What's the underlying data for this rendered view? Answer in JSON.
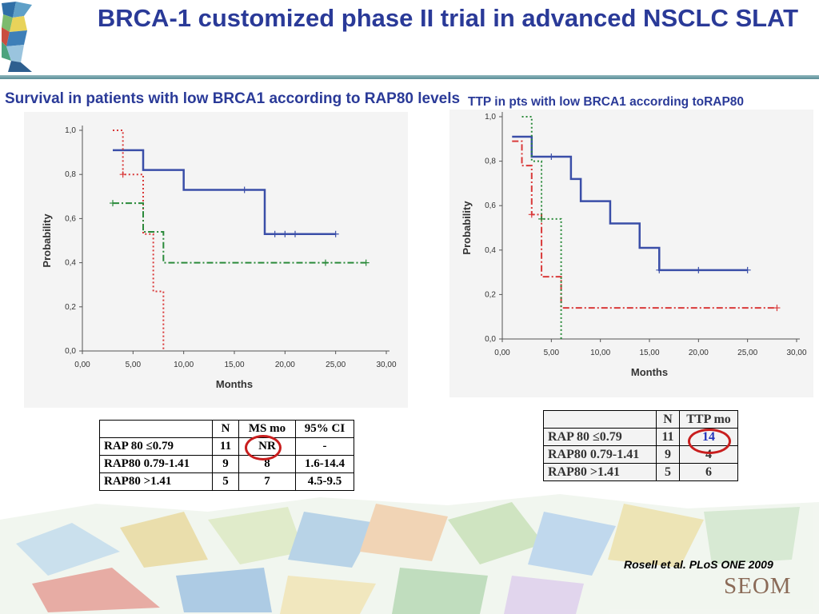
{
  "slide_title": "BRCA-1 customized phase II trial in advanced NSCLC SLAT",
  "citation": "Rosell et al. PLoS ONE 2009",
  "seom_logo": "SEOM",
  "left_heading": "Survival in patients with low BRCA1 according to RAP80 levels",
  "right_heading": "TTP in pts with low BRCA1 according toRAP80",
  "chart_data": [
    {
      "type": "line",
      "step": true,
      "title": "Survival in patients with low BRCA1 according to RAP80 levels",
      "xlabel": "Months",
      "ylabel": "Probability",
      "xlim": [
        0,
        30
      ],
      "ylim": [
        0,
        1
      ],
      "xticks": [
        "0,00",
        "5,00",
        "10,00",
        "15,00",
        "20,00",
        "25,00",
        "30,00"
      ],
      "yticks": [
        "0,0",
        "0,2",
        "0,4",
        "0,6",
        "0,8",
        "1,0"
      ],
      "series": [
        {
          "color": "#3a4ea8",
          "style": "solid",
          "x": [
            3,
            6,
            10,
            18,
            25
          ],
          "y": [
            0.91,
            0.82,
            0.73,
            0.53,
            0.53
          ],
          "censor_x": [
            16,
            19,
            20,
            21,
            25
          ]
        },
        {
          "color": "#d93a3a",
          "style": "dotted",
          "x": [
            3,
            4,
            6,
            7,
            8
          ],
          "y": [
            1.0,
            0.8,
            0.53,
            0.27,
            0.0
          ],
          "censor_x": [
            4
          ]
        },
        {
          "color": "#2a8a3a",
          "style": "dashdot",
          "x": [
            3,
            6,
            8,
            28
          ],
          "y": [
            0.67,
            0.54,
            0.4,
            0.4
          ],
          "censor_x": [
            3,
            24,
            28
          ]
        }
      ]
    },
    {
      "type": "line",
      "step": true,
      "title": "TTP in pts with low BRCA1 according toRAP80",
      "xlabel": "Months",
      "ylabel": "Probability",
      "xlim": [
        0,
        30
      ],
      "ylim": [
        0,
        1
      ],
      "xticks": [
        "0,00",
        "5,00",
        "10,00",
        "15,00",
        "20,00",
        "25,00",
        "30,00"
      ],
      "yticks": [
        "0,0",
        "0,2",
        "0,4",
        "0,6",
        "0,8",
        "1,0"
      ],
      "series": [
        {
          "color": "#3a4ea8",
          "style": "solid",
          "x": [
            1,
            3,
            7,
            8,
            11,
            14,
            16,
            25
          ],
          "y": [
            0.91,
            0.82,
            0.72,
            0.62,
            0.52,
            0.41,
            0.31,
            0.31
          ],
          "censor_x": [
            5,
            16,
            20,
            25
          ]
        },
        {
          "color": "#d93a3a",
          "style": "dashdot",
          "x": [
            1,
            2,
            3,
            4,
            6,
            28
          ],
          "y": [
            0.89,
            0.78,
            0.56,
            0.28,
            0.14,
            0.14
          ],
          "censor_x": [
            3,
            28
          ]
        },
        {
          "color": "#2a8a3a",
          "style": "dotted",
          "x": [
            2,
            3,
            4,
            6
          ],
          "y": [
            1.0,
            0.8,
            0.54,
            0.0
          ],
          "censor_x": [
            4
          ]
        }
      ]
    }
  ],
  "left_table": {
    "headers": [
      "",
      "N",
      "MS mo",
      "95% CI"
    ],
    "rows": [
      [
        "RAP 80 ≤0.79",
        "11",
        "NR",
        "-"
      ],
      [
        "RAP80 0.79-1.41",
        "9",
        "8",
        "1.6-14.4"
      ],
      [
        "RAP80 >1.41",
        "5",
        "7",
        "4.5-9.5"
      ]
    ]
  },
  "right_table": {
    "headers": [
      "",
      "N",
      "TTP mo"
    ],
    "rows": [
      [
        "RAP 80 ≤0.79",
        "11",
        "14"
      ],
      [
        "RAP80 0.79-1.41",
        "9",
        "4"
      ],
      [
        "RAP80 >1.41",
        "5",
        "6"
      ]
    ]
  },
  "colors": {
    "title": "#2a3a98",
    "highlight_oval": "#c81e1e",
    "highlight_text": "#2233bb"
  }
}
